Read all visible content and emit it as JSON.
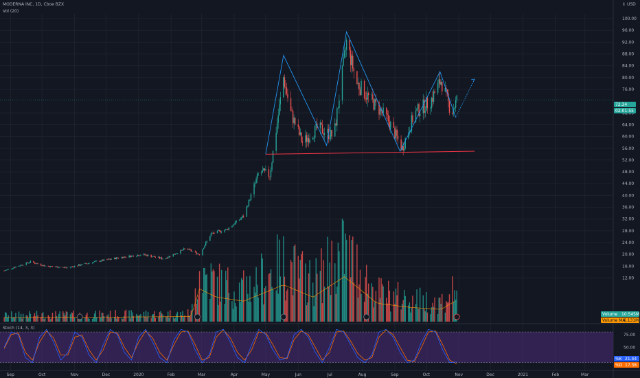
{
  "header": {
    "symbol": "MODERNA INC, 1D, Cboe BZX",
    "volume_indicator": "Vol (20)",
    "stoch_indicator": "Stoch (14, 3, 3)",
    "currency": "USD"
  },
  "badges": {
    "price": "72.34",
    "countdown": "02:01:55",
    "volume": "10.545M",
    "volume_ma_label": "Volume MA",
    "volume_ma": "6.131M",
    "k_label": "%K",
    "k_value": "21.44",
    "d_label": "%D",
    "d_value": "17.38"
  },
  "colors": {
    "background": "#131722",
    "grid": "#1e222d",
    "up": "#26a69a",
    "down": "#ef5350",
    "pattern": "#2196f3",
    "support": "#f23645",
    "stoch_band": "#4a2c7a",
    "k_line": "#2962ff",
    "d_line": "#ff6d00",
    "price_line": "#26a69a"
  },
  "chart_data": {
    "type": "candlestick",
    "price_axis": {
      "ticks": [
        100,
        96,
        92,
        88,
        84,
        80,
        76,
        68,
        64,
        60,
        56,
        52,
        48,
        44,
        40,
        36,
        32,
        28,
        24,
        20,
        16,
        12
      ],
      "labels": [
        "100.00",
        "96.00",
        "92.00",
        "88.00",
        "84.00",
        "80.00",
        "76.00",
        "68.00",
        "64.00",
        "60.00",
        "56.00",
        "52.00",
        "48.00",
        "44.00",
        "40.00",
        "36.00",
        "32.00",
        "28.00",
        "24.00",
        "20.00",
        "16.00",
        "12.00"
      ]
    },
    "stoch_axis": {
      "ticks": [
        75,
        50,
        25
      ],
      "labels": [
        "75.00",
        "50.00",
        "25.00"
      ]
    },
    "time_axis": [
      "Sep",
      "Oct",
      "Nov",
      "Dec",
      "2020",
      "Feb",
      "Mar",
      "Apr",
      "May",
      "Jun",
      "Jul",
      "Aug",
      "Sep",
      "Oct",
      "Nov",
      "Dec",
      "2021",
      "Feb",
      "Mar"
    ],
    "price_path": [
      {
        "date": "2019-08-26",
        "price": 14.5
      },
      {
        "date": "2019-09-20",
        "price": 17.5
      },
      {
        "date": "2019-10-05",
        "price": 16.0
      },
      {
        "date": "2019-10-25",
        "price": 15.5
      },
      {
        "date": "2019-11-20",
        "price": 17.5
      },
      {
        "date": "2019-12-15",
        "price": 19.0
      },
      {
        "date": "2020-01-05",
        "price": 20.0
      },
      {
        "date": "2020-01-25",
        "price": 18.5
      },
      {
        "date": "2020-02-15",
        "price": 22.0
      },
      {
        "date": "2020-02-28",
        "price": 20.0
      },
      {
        "date": "2020-03-10",
        "price": 27.0
      },
      {
        "date": "2020-03-25",
        "price": 28.5
      },
      {
        "date": "2020-04-10",
        "price": 33.0
      },
      {
        "date": "2020-04-25",
        "price": 48.0
      },
      {
        "date": "2020-05-05",
        "price": 47.0
      },
      {
        "date": "2020-05-18",
        "price": 80.0
      },
      {
        "date": "2020-05-25",
        "price": 68.0
      },
      {
        "date": "2020-06-05",
        "price": 58.0
      },
      {
        "date": "2020-06-20",
        "price": 63.0
      },
      {
        "date": "2020-07-05",
        "price": 60.0
      },
      {
        "date": "2020-07-17",
        "price": 92.0
      },
      {
        "date": "2020-07-27",
        "price": 78.0
      },
      {
        "date": "2020-08-10",
        "price": 72.0
      },
      {
        "date": "2020-08-25",
        "price": 66.0
      },
      {
        "date": "2020-09-08",
        "price": 56.0
      },
      {
        "date": "2020-09-20",
        "price": 68.0
      },
      {
        "date": "2020-10-05",
        "price": 72.0
      },
      {
        "date": "2020-10-15",
        "price": 79.0
      },
      {
        "date": "2020-10-25",
        "price": 68.0
      },
      {
        "date": "2020-10-30",
        "price": 72.34
      }
    ],
    "pattern_line": [
      {
        "date": "2020-05-01",
        "price": 54.0
      },
      {
        "date": "2020-05-18",
        "price": 87.5
      },
      {
        "date": "2020-06-28",
        "price": 57.0
      },
      {
        "date": "2020-07-17",
        "price": 95.5
      },
      {
        "date": "2020-09-06",
        "price": 55.0
      },
      {
        "date": "2020-10-14",
        "price": 82.0
      },
      {
        "date": "2020-10-29",
        "price": 66.5
      }
    ],
    "projection": [
      {
        "date": "2020-10-29",
        "price": 66.5
      },
      {
        "date": "2020-11-16",
        "price": 79.5
      }
    ],
    "support_line": [
      {
        "date": "2020-05-01",
        "price": 54.0
      },
      {
        "date": "2020-11-16",
        "price": 55.0
      }
    ],
    "current_price": 72.34,
    "volume_m_path": [
      {
        "date": "2019-08-26",
        "v": 2.0
      },
      {
        "date": "2019-12-01",
        "v": 2.2
      },
      {
        "date": "2020-02-20",
        "v": 2.5
      },
      {
        "date": "2020-02-28",
        "v": 16.0
      },
      {
        "date": "2020-03-15",
        "v": 12.0
      },
      {
        "date": "2020-04-10",
        "v": 10.0
      },
      {
        "date": "2020-05-18",
        "v": 18.0
      },
      {
        "date": "2020-06-15",
        "v": 12.0
      },
      {
        "date": "2020-07-15",
        "v": 22.0
      },
      {
        "date": "2020-08-15",
        "v": 9.0
      },
      {
        "date": "2020-09-15",
        "v": 7.0
      },
      {
        "date": "2020-10-15",
        "v": 6.0
      },
      {
        "date": "2020-10-30",
        "v": 10.5
      }
    ],
    "stoch": {
      "k": [
        50,
        80,
        75,
        30,
        20,
        70,
        85,
        60,
        25,
        40,
        80,
        70,
        35,
        20,
        55,
        85,
        75,
        40,
        25,
        70,
        85,
        60,
        30,
        20,
        65,
        85,
        80,
        45,
        20,
        35,
        80,
        85,
        60,
        30,
        20,
        55,
        85,
        75,
        45,
        25,
        30,
        75,
        85,
        70,
        40,
        20,
        50,
        85,
        80,
        55,
        30,
        20,
        35,
        80,
        85,
        70,
        40,
        20,
        25,
        60,
        85,
        80,
        45,
        20,
        21.44
      ],
      "d": [
        48,
        75,
        78,
        40,
        25,
        60,
        82,
        68,
        35,
        35,
        70,
        74,
        45,
        25,
        45,
        80,
        78,
        50,
        30,
        60,
        82,
        68,
        40,
        25,
        55,
        80,
        82,
        55,
        25,
        30,
        70,
        84,
        68,
        40,
        25,
        45,
        80,
        78,
        55,
        30,
        28,
        65,
        82,
        75,
        50,
        25,
        40,
        80,
        82,
        62,
        38,
        25,
        30,
        70,
        84,
        75,
        50,
        25,
        22,
        50,
        80,
        82,
        55,
        25,
        17.38
      ]
    }
  }
}
